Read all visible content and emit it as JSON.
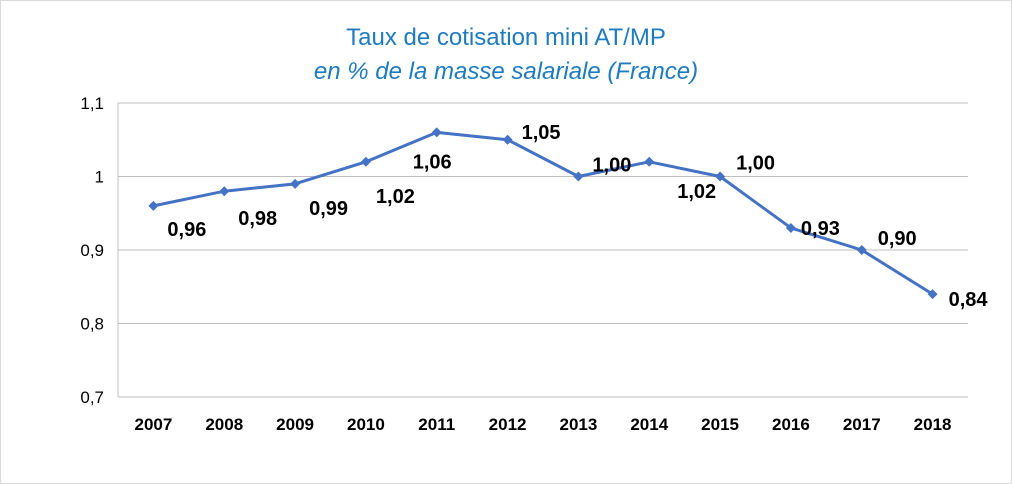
{
  "chart_data": {
    "type": "line",
    "title": "Taux de cotisation mini  AT/MP",
    "subtitle": "en % de la masse salariale (France)",
    "xlabel": "",
    "ylabel": "",
    "categories": [
      "2007",
      "2008",
      "2009",
      "2010",
      "2011",
      "2012",
      "2013",
      "2014",
      "2015",
      "2016",
      "2017",
      "2018"
    ],
    "series": [
      {
        "values": [
          0.96,
          0.98,
          0.99,
          1.02,
          1.06,
          1.05,
          1.0,
          1.02,
          1.0,
          0.93,
          0.9,
          0.84
        ],
        "data_labels": [
          "0,96",
          "0,98",
          "0,99",
          "1,02",
          "1,06",
          "1,05",
          "1,00",
          "1,02",
          "1,00",
          "0,93",
          "0,90",
          "0,84"
        ],
        "color": "#4472c4",
        "marker": "diamond"
      }
    ],
    "ylim": [
      0.7,
      1.1
    ],
    "yticks": [
      0.7,
      0.8,
      0.9,
      1.0,
      1.1
    ],
    "ytick_labels": [
      "0,7",
      "0,8",
      "0,9",
      "1",
      "1,1"
    ],
    "grid": "horizontal",
    "legend": "none"
  }
}
